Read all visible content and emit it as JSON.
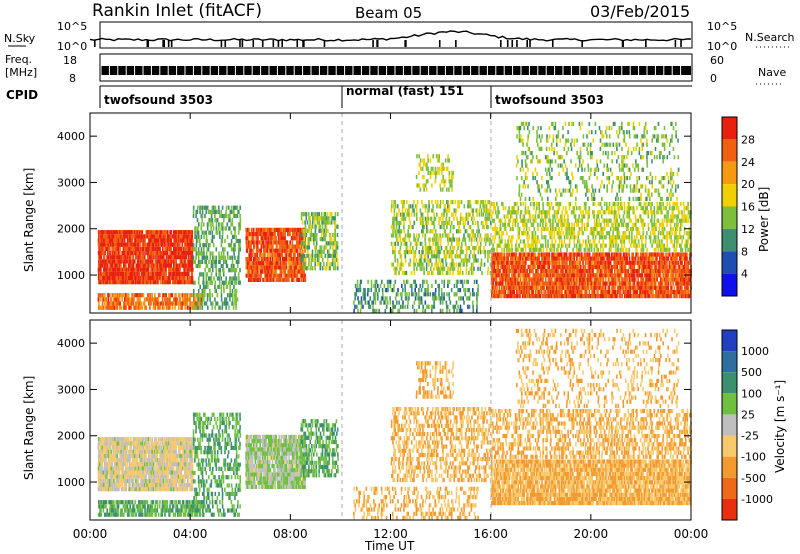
{
  "header": {
    "station": "Rankin Inlet (fitACF)",
    "beam": "Beam 05",
    "date": "03/Feb/2015"
  },
  "noise_panel": {
    "left_label": "N.Sky",
    "right_label": "N.Search",
    "y_ticks": [
      "10^5",
      "10^0"
    ],
    "right_ticks": [
      "10^5",
      "10^0"
    ]
  },
  "freq_panel": {
    "left_label_1": "Freq.",
    "left_label_2": "[MHz]",
    "right_label": "Nave",
    "left_ticks": [
      "18",
      "8"
    ],
    "right_ticks": [
      "60",
      "0"
    ]
  },
  "cpid": {
    "label": "CPID",
    "segments": [
      {
        "name": "twofsound 3503",
        "start_hour": 0,
        "end_hour": 10
      },
      {
        "name": "normal (fast) 151",
        "start_hour": 10,
        "end_hour": 16
      },
      {
        "name": "twofsound 3503",
        "start_hour": 16,
        "end_hour": 24
      }
    ]
  },
  "x_axis": {
    "label": "Time UT",
    "ticks": [
      "00:00",
      "04:00",
      "08:00",
      "12:00",
      "16:00",
      "20:00",
      "00:00"
    ],
    "range_hours": [
      0,
      24
    ]
  },
  "power_panel": {
    "ylabel": "Slant Range [km]",
    "y_ticks": [
      "1000",
      "2000",
      "3000",
      "4000"
    ],
    "colorbar_label": "Power [dB]",
    "colorbar_ticks": [
      "4",
      "8",
      "12",
      "16",
      "20",
      "24",
      "28"
    ],
    "colors": [
      "#1010ee",
      "#1e4fb0",
      "#3f8f6f",
      "#7bbf3a",
      "#f0d000",
      "#f59a10",
      "#f06010",
      "#e82010"
    ]
  },
  "velocity_panel": {
    "ylabel": "Slant Range [km]",
    "y_ticks": [
      "1000",
      "2000",
      "3000",
      "4000"
    ],
    "colorbar_label": "Velocity [m s⁻¹]",
    "colorbar_ticks": [
      "1000",
      "500",
      "100",
      "25",
      "-25",
      "-100",
      "-500",
      "-1000"
    ],
    "colors": [
      "#2040c0",
      "#2e6fa0",
      "#3c9070",
      "#6fc040",
      "#bfbfbf",
      "#f7c96a",
      "#f29a30",
      "#ee6a18",
      "#e83010"
    ]
  },
  "chart_data": {
    "type": "heatmap",
    "title": "Rankin Inlet (fitACF)  Beam 05  03/Feb/2015",
    "xlabel": "Time UT",
    "ylabel": "Slant Range [km]",
    "xlim_hours": [
      0,
      24
    ],
    "ylim_km": [
      180,
      4500
    ],
    "panels": [
      "Power [dB]",
      "Velocity [m s⁻¹]"
    ],
    "regions": [
      {
        "t0": 0.3,
        "t1": 4.1,
        "r0": 800,
        "r1": 1950,
        "power_db": 27,
        "velocity": -25,
        "density": 0.95
      },
      {
        "t0": 0.3,
        "t1": 4.5,
        "r0": 250,
        "r1": 600,
        "power_db": 23,
        "velocity": 100,
        "density": 0.8
      },
      {
        "t0": 4.1,
        "t1": 6.0,
        "r0": 250,
        "r1": 2500,
        "power_db": 10,
        "velocity": 100,
        "density": 0.45
      },
      {
        "t0": 6.2,
        "t1": 8.6,
        "r0": 850,
        "r1": 2000,
        "power_db": 25,
        "velocity": 25,
        "density": 0.9
      },
      {
        "t0": 8.4,
        "t1": 9.9,
        "r0": 1100,
        "r1": 2400,
        "power_db": 12,
        "velocity": 100,
        "density": 0.6
      },
      {
        "t0": 10.5,
        "t1": 15.5,
        "r0": 180,
        "r1": 900,
        "power_db": 9,
        "velocity": -100,
        "density": 0.35
      },
      {
        "t0": 12.0,
        "t1": 16.0,
        "r0": 1000,
        "r1": 2600,
        "power_db": 13,
        "velocity": -100,
        "density": 0.45
      },
      {
        "t0": 13.0,
        "t1": 14.5,
        "r0": 2800,
        "r1": 3600,
        "power_db": 14,
        "velocity": -100,
        "density": 0.35
      },
      {
        "t0": 16.0,
        "t1": 24.0,
        "r0": 500,
        "r1": 1500,
        "power_db": 25,
        "velocity": -100,
        "density": 0.9
      },
      {
        "t0": 16.0,
        "t1": 24.0,
        "r0": 1500,
        "r1": 2600,
        "power_db": 14,
        "velocity": -100,
        "density": 0.5
      },
      {
        "t0": 17.0,
        "t1": 23.5,
        "r0": 2600,
        "r1": 4300,
        "power_db": 12,
        "velocity": -100,
        "density": 0.22
      }
    ]
  }
}
